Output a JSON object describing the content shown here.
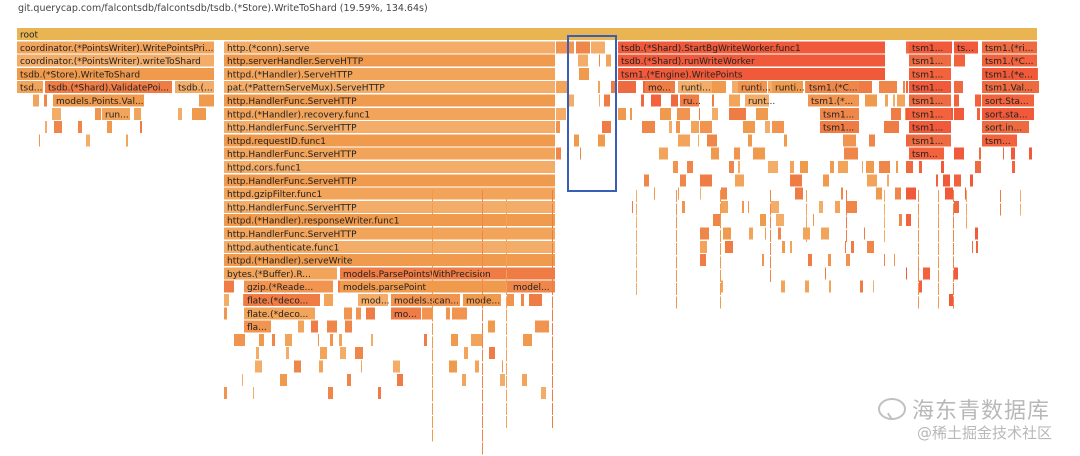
{
  "header": {
    "title": "git.querycap.com/falcontsdb/falcontsdb/tsdb.(*Store).WriteToShard (19.59%, 134.64s)"
  },
  "watermark": {
    "line1": "海东青数据库",
    "line2": "@稀土掘金技术社区"
  },
  "colors": {
    "root": "#e9b552",
    "orange": "#f0914a",
    "light": "#f4b270",
    "red": "#f05a3a",
    "selection": "#3a5db8"
  },
  "flame": {
    "labeled": [
      {
        "label": "root",
        "d": 0,
        "s": 17,
        "e": 1038
      },
      {
        "label": "coordinator.(*PointsWriter).WritePointsPri...",
        "d": 1,
        "s": 17,
        "e": 215
      },
      {
        "label": "coordinator.(*PointsWriter).writeToShard",
        "d": 2,
        "s": 17,
        "e": 215
      },
      {
        "label": "tsdb.(*Store).WriteToShard",
        "d": 3,
        "s": 17,
        "e": 215
      },
      {
        "label": "tsd...",
        "d": 4,
        "s": 17,
        "e": 44
      },
      {
        "label": "tsdb.(*Shard).ValidatePoi...",
        "d": 4,
        "s": 45,
        "e": 173
      },
      {
        "label": "tsdb.(...",
        "d": 4,
        "s": 175,
        "e": 215
      },
      {
        "label": "models.Points.Val...",
        "d": 5,
        "s": 53,
        "e": 145
      },
      {
        "label": "run...",
        "d": 6,
        "s": 102,
        "e": 131
      },
      {
        "label": "http.(*conn).serve",
        "d": 1,
        "s": 224,
        "e": 556
      },
      {
        "label": "http.serverHandler.ServeHTTP",
        "d": 2,
        "s": 224,
        "e": 556
      },
      {
        "label": "httpd.(*Handler).ServeHTTP",
        "d": 3,
        "s": 224,
        "e": 556
      },
      {
        "label": "pat.(*PatternServeMux).ServeHTTP",
        "d": 4,
        "s": 224,
        "e": 556
      },
      {
        "label": "http.HandlerFunc.ServeHTTP",
        "d": 5,
        "s": 224,
        "e": 556
      },
      {
        "label": "httpd.(*Handler).recovery.func1",
        "d": 6,
        "s": 224,
        "e": 556
      },
      {
        "label": "http.HandlerFunc.ServeHTTP",
        "d": 7,
        "s": 224,
        "e": 556
      },
      {
        "label": "httpd.requestID.func1",
        "d": 8,
        "s": 224,
        "e": 556
      },
      {
        "label": "http.HandlerFunc.ServeHTTP",
        "d": 9,
        "s": 224,
        "e": 556
      },
      {
        "label": "httpd.cors.func1",
        "d": 10,
        "s": 224,
        "e": 556
      },
      {
        "label": "http.HandlerFunc.ServeHTTP",
        "d": 11,
        "s": 224,
        "e": 556
      },
      {
        "label": "httpd.gzipFilter.func1",
        "d": 12,
        "s": 224,
        "e": 556
      },
      {
        "label": "http.HandlerFunc.ServeHTTP",
        "d": 13,
        "s": 224,
        "e": 556
      },
      {
        "label": "httpd.(*Handler).responseWriter.func1",
        "d": 14,
        "s": 224,
        "e": 556
      },
      {
        "label": "http.HandlerFunc.ServeHTTP",
        "d": 15,
        "s": 224,
        "e": 556
      },
      {
        "label": "httpd.authenticate.func1",
        "d": 16,
        "s": 224,
        "e": 556
      },
      {
        "label": "httpd.(*Handler).serveWrite",
        "d": 17,
        "s": 224,
        "e": 556
      },
      {
        "label": "bytes.(*Buffer).R...",
        "d": 18,
        "s": 224,
        "e": 338
      },
      {
        "label": "models.ParsePointsWithPrecision",
        "d": 18,
        "s": 340,
        "e": 556
      },
      {
        "label": "gzip.(*Reade...",
        "d": 19,
        "s": 244,
        "e": 334
      },
      {
        "label": "models.parsePoint",
        "d": 19,
        "s": 340,
        "e": 508
      },
      {
        "label": "model...",
        "d": 19,
        "s": 510,
        "e": 556
      },
      {
        "label": "flate.(*deco...",
        "d": 20,
        "s": 244,
        "e": 316
      },
      {
        "label": "mod...",
        "d": 20,
        "s": 358,
        "e": 389
      },
      {
        "label": "models.scan...",
        "d": 20,
        "s": 391,
        "e": 461
      },
      {
        "label": "mode...",
        "d": 20,
        "s": 463,
        "e": 502
      },
      {
        "label": "flate.(*deco...",
        "d": 21,
        "s": 244,
        "e": 316
      },
      {
        "label": "mo...",
        "d": 21,
        "s": 391,
        "e": 422
      },
      {
        "label": "fla...",
        "d": 22,
        "s": 244,
        "e": 272
      },
      {
        "label": "tsdb.(*Shard).StartBgWriteWorker.func1",
        "d": 1,
        "s": 618,
        "e": 886
      },
      {
        "label": "tsdb.(*Shard).runWriteWorker",
        "d": 2,
        "s": 618,
        "e": 886
      },
      {
        "label": "tsm1.(*Engine).WritePoints",
        "d": 3,
        "s": 618,
        "e": 886
      },
      {
        "label": "mo...",
        "d": 4,
        "s": 645,
        "e": 676
      },
      {
        "label": "runti...",
        "d": 4,
        "s": 678,
        "e": 713
      },
      {
        "label": "runti...",
        "d": 4,
        "s": 738,
        "e": 768
      },
      {
        "label": "runti...",
        "d": 4,
        "s": 772,
        "e": 803
      },
      {
        "label": "tsm1.(*C...",
        "d": 4,
        "s": 806,
        "e": 860
      },
      {
        "label": "ru...",
        "d": 5,
        "s": 680,
        "e": 700
      },
      {
        "label": "runt...",
        "d": 5,
        "s": 745,
        "e": 770
      },
      {
        "label": "tsm1.(*...",
        "d": 5,
        "s": 808,
        "e": 860
      },
      {
        "label": "tsm1...",
        "d": 6,
        "s": 820,
        "e": 860
      },
      {
        "label": "tsm1...",
        "d": 7,
        "s": 820,
        "e": 860
      },
      {
        "label": "tsm1...",
        "d": 1,
        "s": 909,
        "e": 952
      },
      {
        "label": "tsm1...",
        "d": 2,
        "s": 909,
        "e": 952
      },
      {
        "label": "tsm1...",
        "d": 3,
        "s": 909,
        "e": 952
      },
      {
        "label": "tsm1...",
        "d": 4,
        "s": 909,
        "e": 952
      },
      {
        "label": "tsm1...",
        "d": 5,
        "s": 909,
        "e": 952
      },
      {
        "label": "tsm1...",
        "d": 6,
        "s": 909,
        "e": 952
      },
      {
        "label": "tsm1...",
        "d": 7,
        "s": 909,
        "e": 952
      },
      {
        "label": "tsm1...",
        "d": 8,
        "s": 909,
        "e": 952
      },
      {
        "label": "tsm...",
        "d": 9,
        "s": 909,
        "e": 945
      },
      {
        "label": "ts...",
        "d": 1,
        "s": 954,
        "e": 979
      },
      {
        "label": "tsm1.(*ri...",
        "d": 1,
        "s": 982,
        "e": 1038
      },
      {
        "label": "tsm1.(*C...",
        "d": 2,
        "s": 982,
        "e": 1038
      },
      {
        "label": "tsm1.(*e...",
        "d": 3,
        "s": 982,
        "e": 1038
      },
      {
        "label": "tsm1.Val...",
        "d": 4,
        "s": 982,
        "e": 1038
      },
      {
        "label": "sort.Sta...",
        "d": 5,
        "s": 982,
        "e": 1035
      },
      {
        "label": "sort.sta...",
        "d": 6,
        "s": 982,
        "e": 1035
      },
      {
        "label": "sort.in...",
        "d": 7,
        "s": 982,
        "e": 1030
      },
      {
        "label": "tsm...",
        "d": 8,
        "s": 982,
        "e": 1018
      }
    ]
  }
}
